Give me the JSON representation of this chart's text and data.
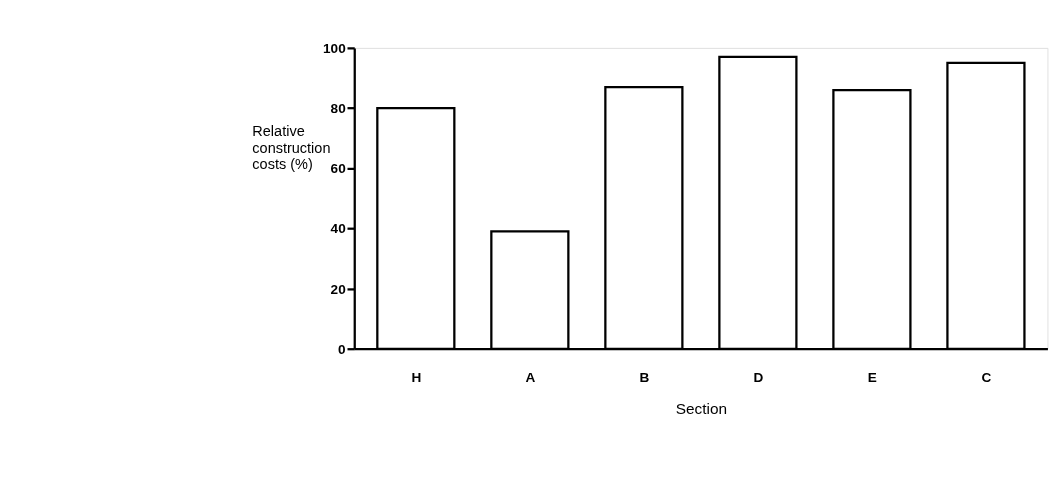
{
  "chart_data": {
    "type": "bar",
    "xlabel": "Section",
    "ylabel": "Relative construction costs (%)",
    "categories": [
      "H",
      "A",
      "B",
      "D",
      "E",
      "C"
    ],
    "values": [
      80,
      39,
      87,
      97,
      86,
      95
    ],
    "color": "#ffffff",
    "ylim": [
      0,
      100
    ],
    "yticks": [
      0,
      20,
      40,
      60,
      80,
      100
    ],
    "grid": false
  }
}
